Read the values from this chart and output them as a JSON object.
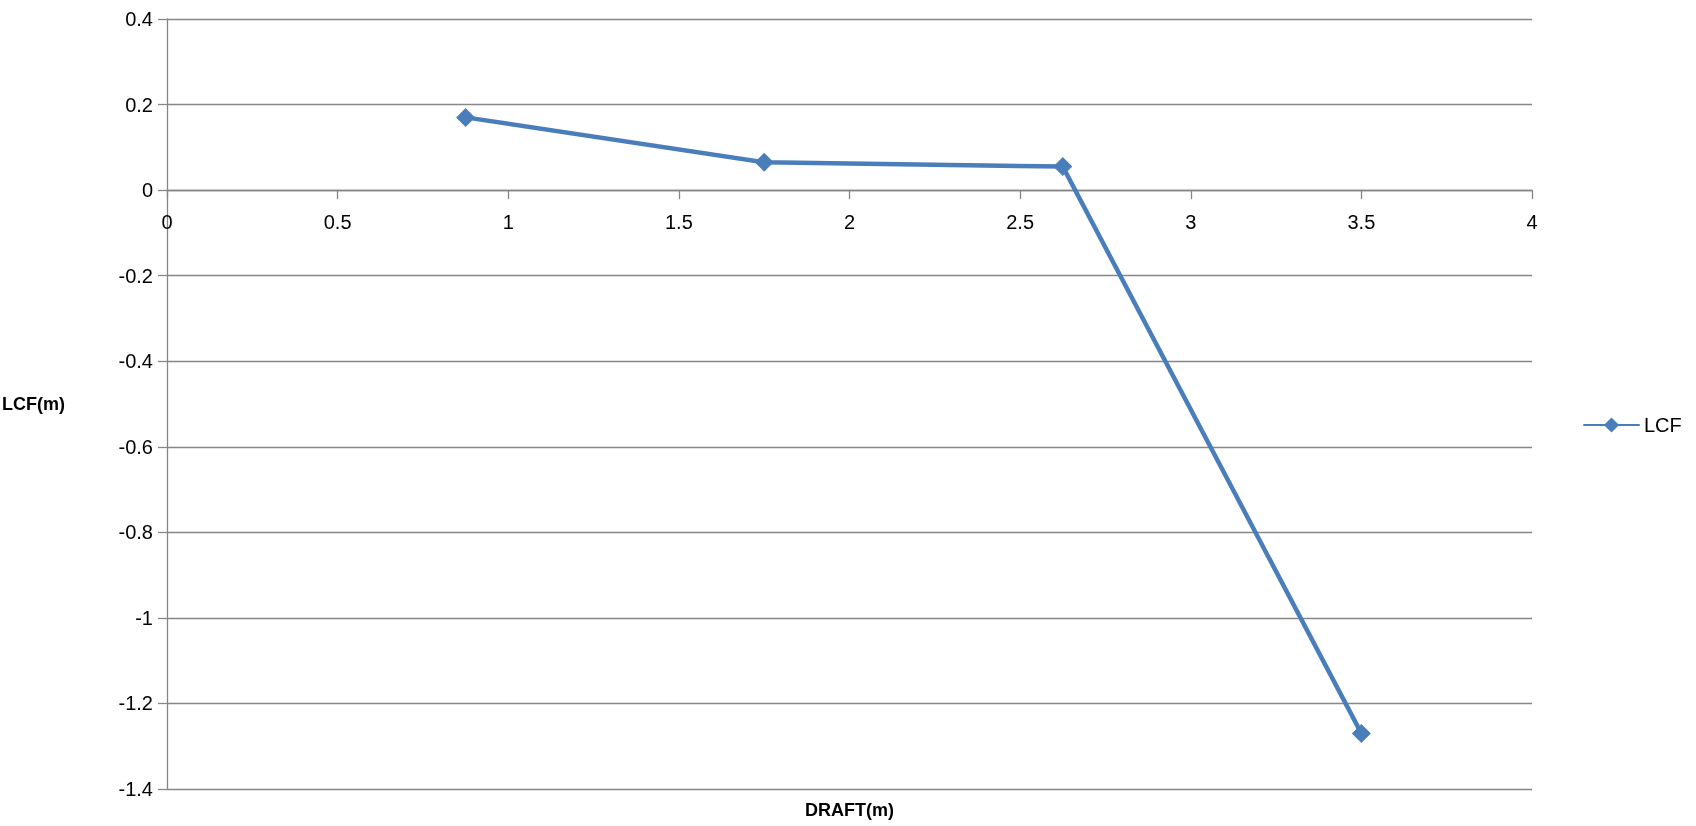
{
  "chart_data": {
    "type": "line",
    "xlabel": "DRAFT(m)",
    "ylabel": "LCF(m)",
    "x": [
      0.875,
      1.75,
      2.625,
      3.5
    ],
    "series": [
      {
        "name": "LCF",
        "color": "#4a7ebb",
        "values": [
          0.17,
          0.065,
          0.055,
          -1.27
        ]
      }
    ],
    "xlim": [
      0,
      4
    ],
    "xticks": [
      0,
      0.5,
      1,
      1.5,
      2,
      2.5,
      3,
      3.5,
      4
    ],
    "ylim": [
      -1.4,
      0.4
    ],
    "yticks": [
      -1.4,
      -1.2,
      -1,
      -0.8,
      -0.6,
      -0.4,
      -0.2,
      0,
      0.2,
      0.4
    ],
    "grid": "y",
    "legend": "right",
    "marker": "diamond",
    "line_style": "solid"
  }
}
